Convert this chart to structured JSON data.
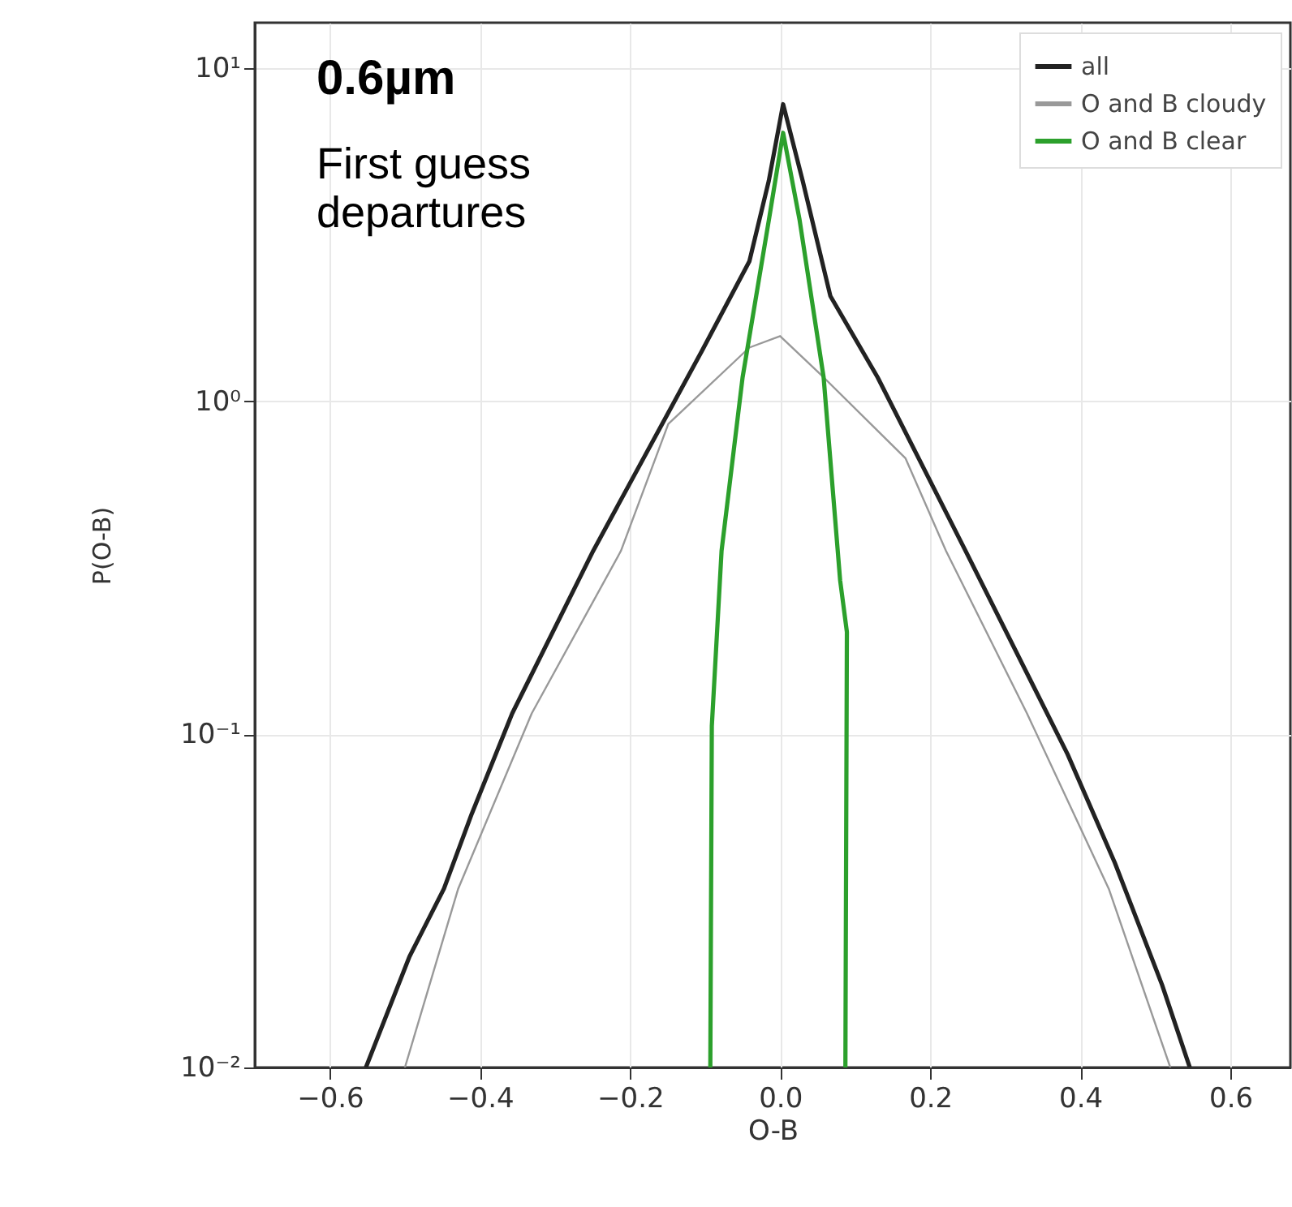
{
  "chart_data": {
    "type": "line",
    "xlabel": "O-B",
    "ylabel": "P(O-B)",
    "log": "y",
    "grid": true,
    "legend": "top right",
    "annotations": [
      "0.6µm",
      "First guess\ndepartures"
    ],
    "xlim": [
      -0.7,
      0.68
    ],
    "xticks": [
      -0.6,
      -0.4,
      -0.2,
      {
        "value": 0,
        "label": "0.0"
      },
      0.2,
      0.4,
      0.6
    ],
    "ylim": [
      0.01,
      13.7
    ],
    "yticks": [
      {
        "value": 10,
        "label": "10¹"
      },
      {
        "value": 1,
        "label": "10⁰"
      },
      {
        "value": 0.1,
        "label": "10⁻¹"
      },
      {
        "value": 0.01,
        "label": "10⁻²"
      }
    ],
    "series": [
      {
        "name": "all",
        "color": "#222222",
        "x": [
          -0.552,
          -0.494,
          -0.448,
          -0.411,
          -0.357,
          -0.249,
          -0.104,
          -0.041,
          -0.015,
          0.004,
          0.03,
          0.067,
          0.13,
          0.247,
          0.383,
          0.446,
          0.509,
          0.546
        ],
        "values": [
          0.01,
          0.0215,
          0.0344,
          0.0577,
          0.1156,
          0.356,
          1.42,
          2.63,
          4.6,
          7.8,
          4.6,
          2.07,
          1.18,
          0.356,
          0.0873,
          0.0412,
          0.0177,
          0.01
        ]
      },
      {
        "name": "O and B cloudy",
        "color": "#999999",
        "x": [
          -0.5,
          -0.429,
          -0.331,
          -0.212,
          -0.149,
          -0.041,
          0.0,
          0.058,
          0.167,
          0.221,
          0.329,
          0.438,
          0.52
        ],
        "values": [
          0.01,
          0.0344,
          0.1156,
          0.356,
          0.855,
          1.45,
          1.57,
          1.18,
          0.675,
          0.356,
          0.1156,
          0.0344,
          0.01
        ]
      },
      {
        "name": "O and B clear",
        "color": "#2ca02c",
        "x": [
          -0.093,
          -0.091,
          -0.078,
          -0.05,
          -0.015,
          0.004,
          0.026,
          0.058,
          0.08,
          0.089,
          0.087
        ],
        "values": [
          0.01,
          0.106,
          0.356,
          1.18,
          3.5,
          6.4,
          3.5,
          1.18,
          0.29,
          0.203,
          0.01
        ]
      }
    ]
  }
}
